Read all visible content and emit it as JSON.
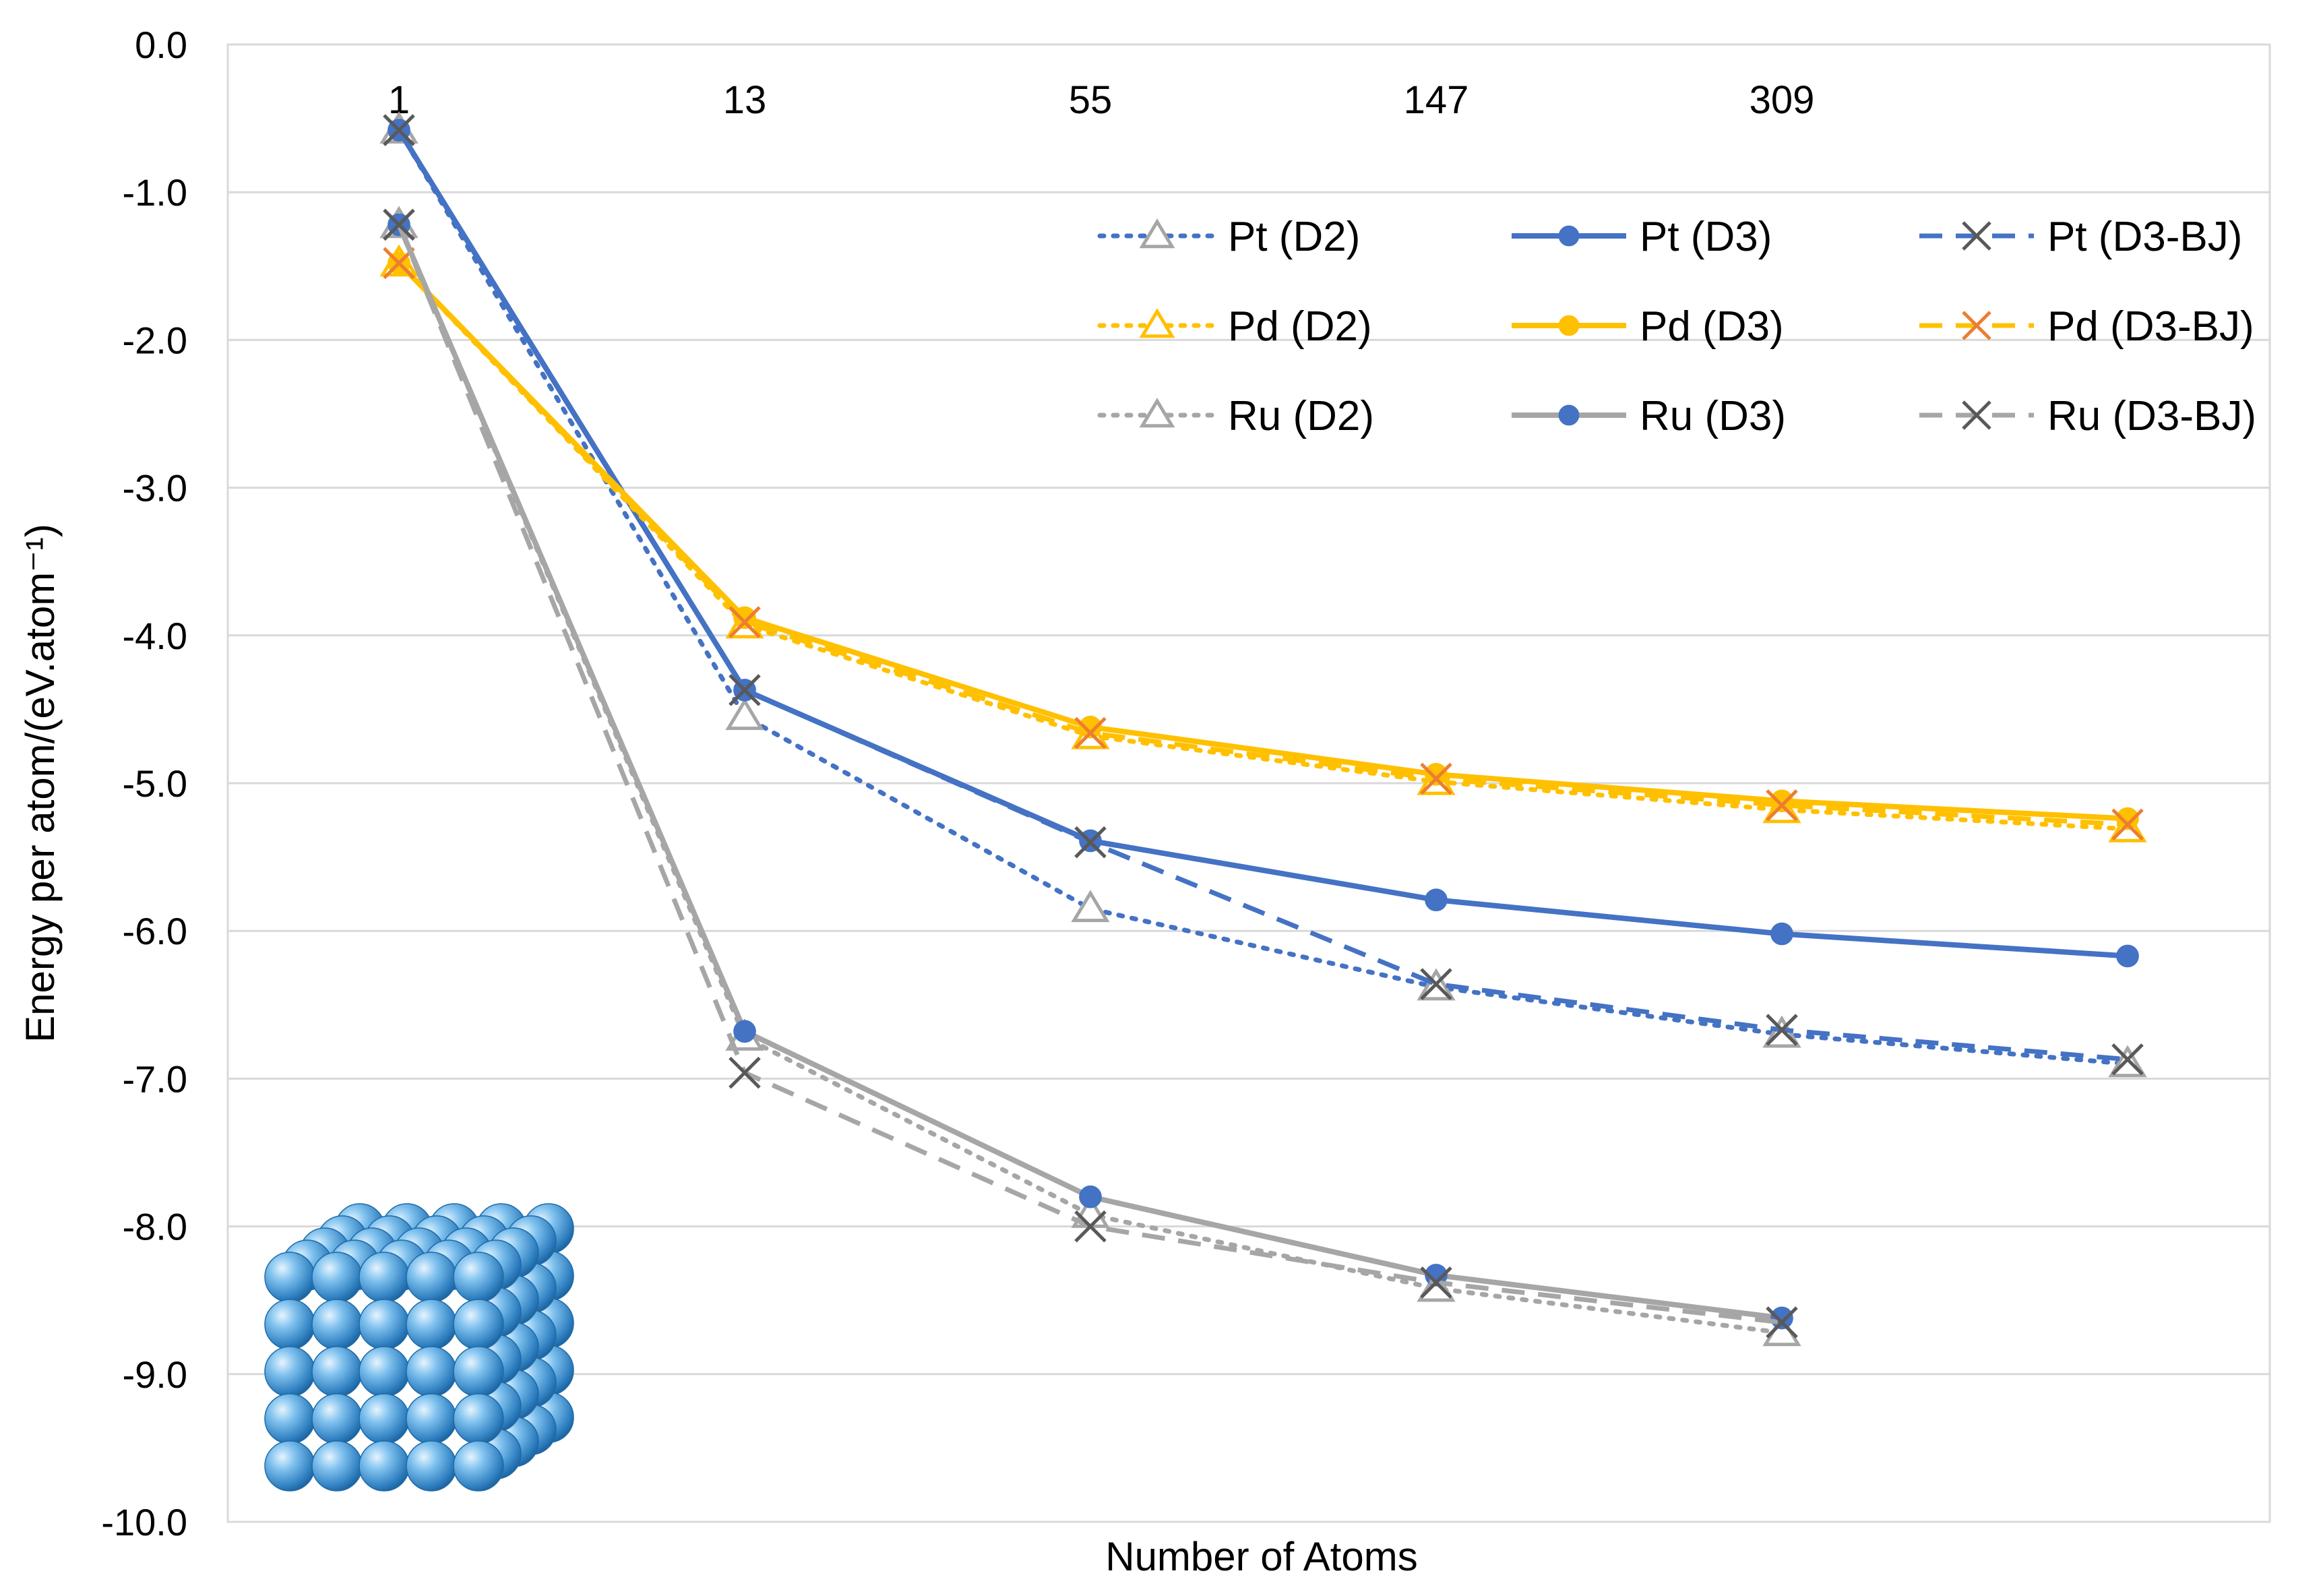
{
  "chart_data": {
    "type": "line",
    "title": "",
    "xlabel": "Number of Atoms",
    "ylabel": "Energy per atom/(eV.atom⁻¹)",
    "ylim": [
      -10,
      0
    ],
    "yticks": [
      0,
      -1,
      -2,
      -3,
      -4,
      -5,
      -6,
      -7,
      -8,
      -9,
      -10
    ],
    "ytick_labels": [
      "0.0",
      "-1.0",
      "-2.0",
      "-3.0",
      "-4.0",
      "-5.0",
      "-6.0",
      "-7.0",
      "-8.0",
      "-9.0",
      "-10.0"
    ],
    "categories": [
      "1",
      "13",
      "55",
      "147",
      "309",
      ""
    ],
    "grid": true,
    "legend": "top-right, 3 columns",
    "series": [
      {
        "name": "Pt (D2)",
        "color": "#4472C4",
        "dash": "dot",
        "marker": "triangle",
        "marker_color": "#A6A6A6",
        "values": [
          -0.58,
          -4.55,
          -5.85,
          -6.38,
          -6.7,
          -6.9
        ]
      },
      {
        "name": "Pt (D3)",
        "color": "#4472C4",
        "dash": "solid",
        "marker": "circle",
        "marker_color": "#4472C4",
        "values": [
          -0.58,
          -4.37,
          -5.39,
          -5.79,
          -6.02,
          -6.17
        ]
      },
      {
        "name": "Pt (D3-BJ)",
        "color": "#4472C4",
        "dash": "dash",
        "marker": "x",
        "marker_color": "#595959",
        "values": [
          -0.58,
          -4.37,
          -5.4,
          -6.36,
          -6.67,
          -6.87
        ]
      },
      {
        "name": "Pd (D2)",
        "color": "#FFC000",
        "dash": "dot",
        "marker": "triangle",
        "marker_color": "#FFC000",
        "values": [
          -1.48,
          -3.93,
          -4.68,
          -4.99,
          -5.18,
          -5.31
        ]
      },
      {
        "name": "Pd (D3)",
        "color": "#FFC000",
        "dash": "solid",
        "marker": "circle",
        "marker_color": "#FFC000",
        "values": [
          -1.48,
          -3.88,
          -4.62,
          -4.94,
          -5.12,
          -5.24
        ]
      },
      {
        "name": "Pd (D3-BJ)",
        "color": "#FFC000",
        "dash": "dash",
        "marker": "x",
        "marker_color": "#ED7D31",
        "values": [
          -1.48,
          -3.91,
          -4.66,
          -4.97,
          -5.15,
          -5.28
        ]
      },
      {
        "name": "Ru (D2)",
        "color": "#A6A6A6",
        "dash": "dot",
        "marker": "triangle",
        "marker_color": "#A6A6A6",
        "values": [
          -1.22,
          -6.72,
          -7.92,
          -8.42,
          -8.72,
          null
        ]
      },
      {
        "name": "Ru (D3)",
        "color": "#A6A6A6",
        "dash": "solid",
        "marker": "circle",
        "marker_color": "#4472C4",
        "values": [
          -1.22,
          -6.68,
          -7.8,
          -8.33,
          -8.62,
          null
        ]
      },
      {
        "name": "Ru (D3-BJ)",
        "color": "#A6A6A6",
        "dash": "dash",
        "marker": "x",
        "marker_color": "#595959",
        "values": [
          -1.22,
          -6.96,
          -8.0,
          -8.38,
          -8.65,
          null
        ]
      }
    ]
  },
  "colors": {
    "pt": "#4472C4",
    "pd": "#FFC000",
    "ru": "#A6A6A6",
    "grid": "#D9D9D9",
    "cube_sphere": "#5B9BD5"
  },
  "inset_image": "cubic-nanoparticle-spheres"
}
